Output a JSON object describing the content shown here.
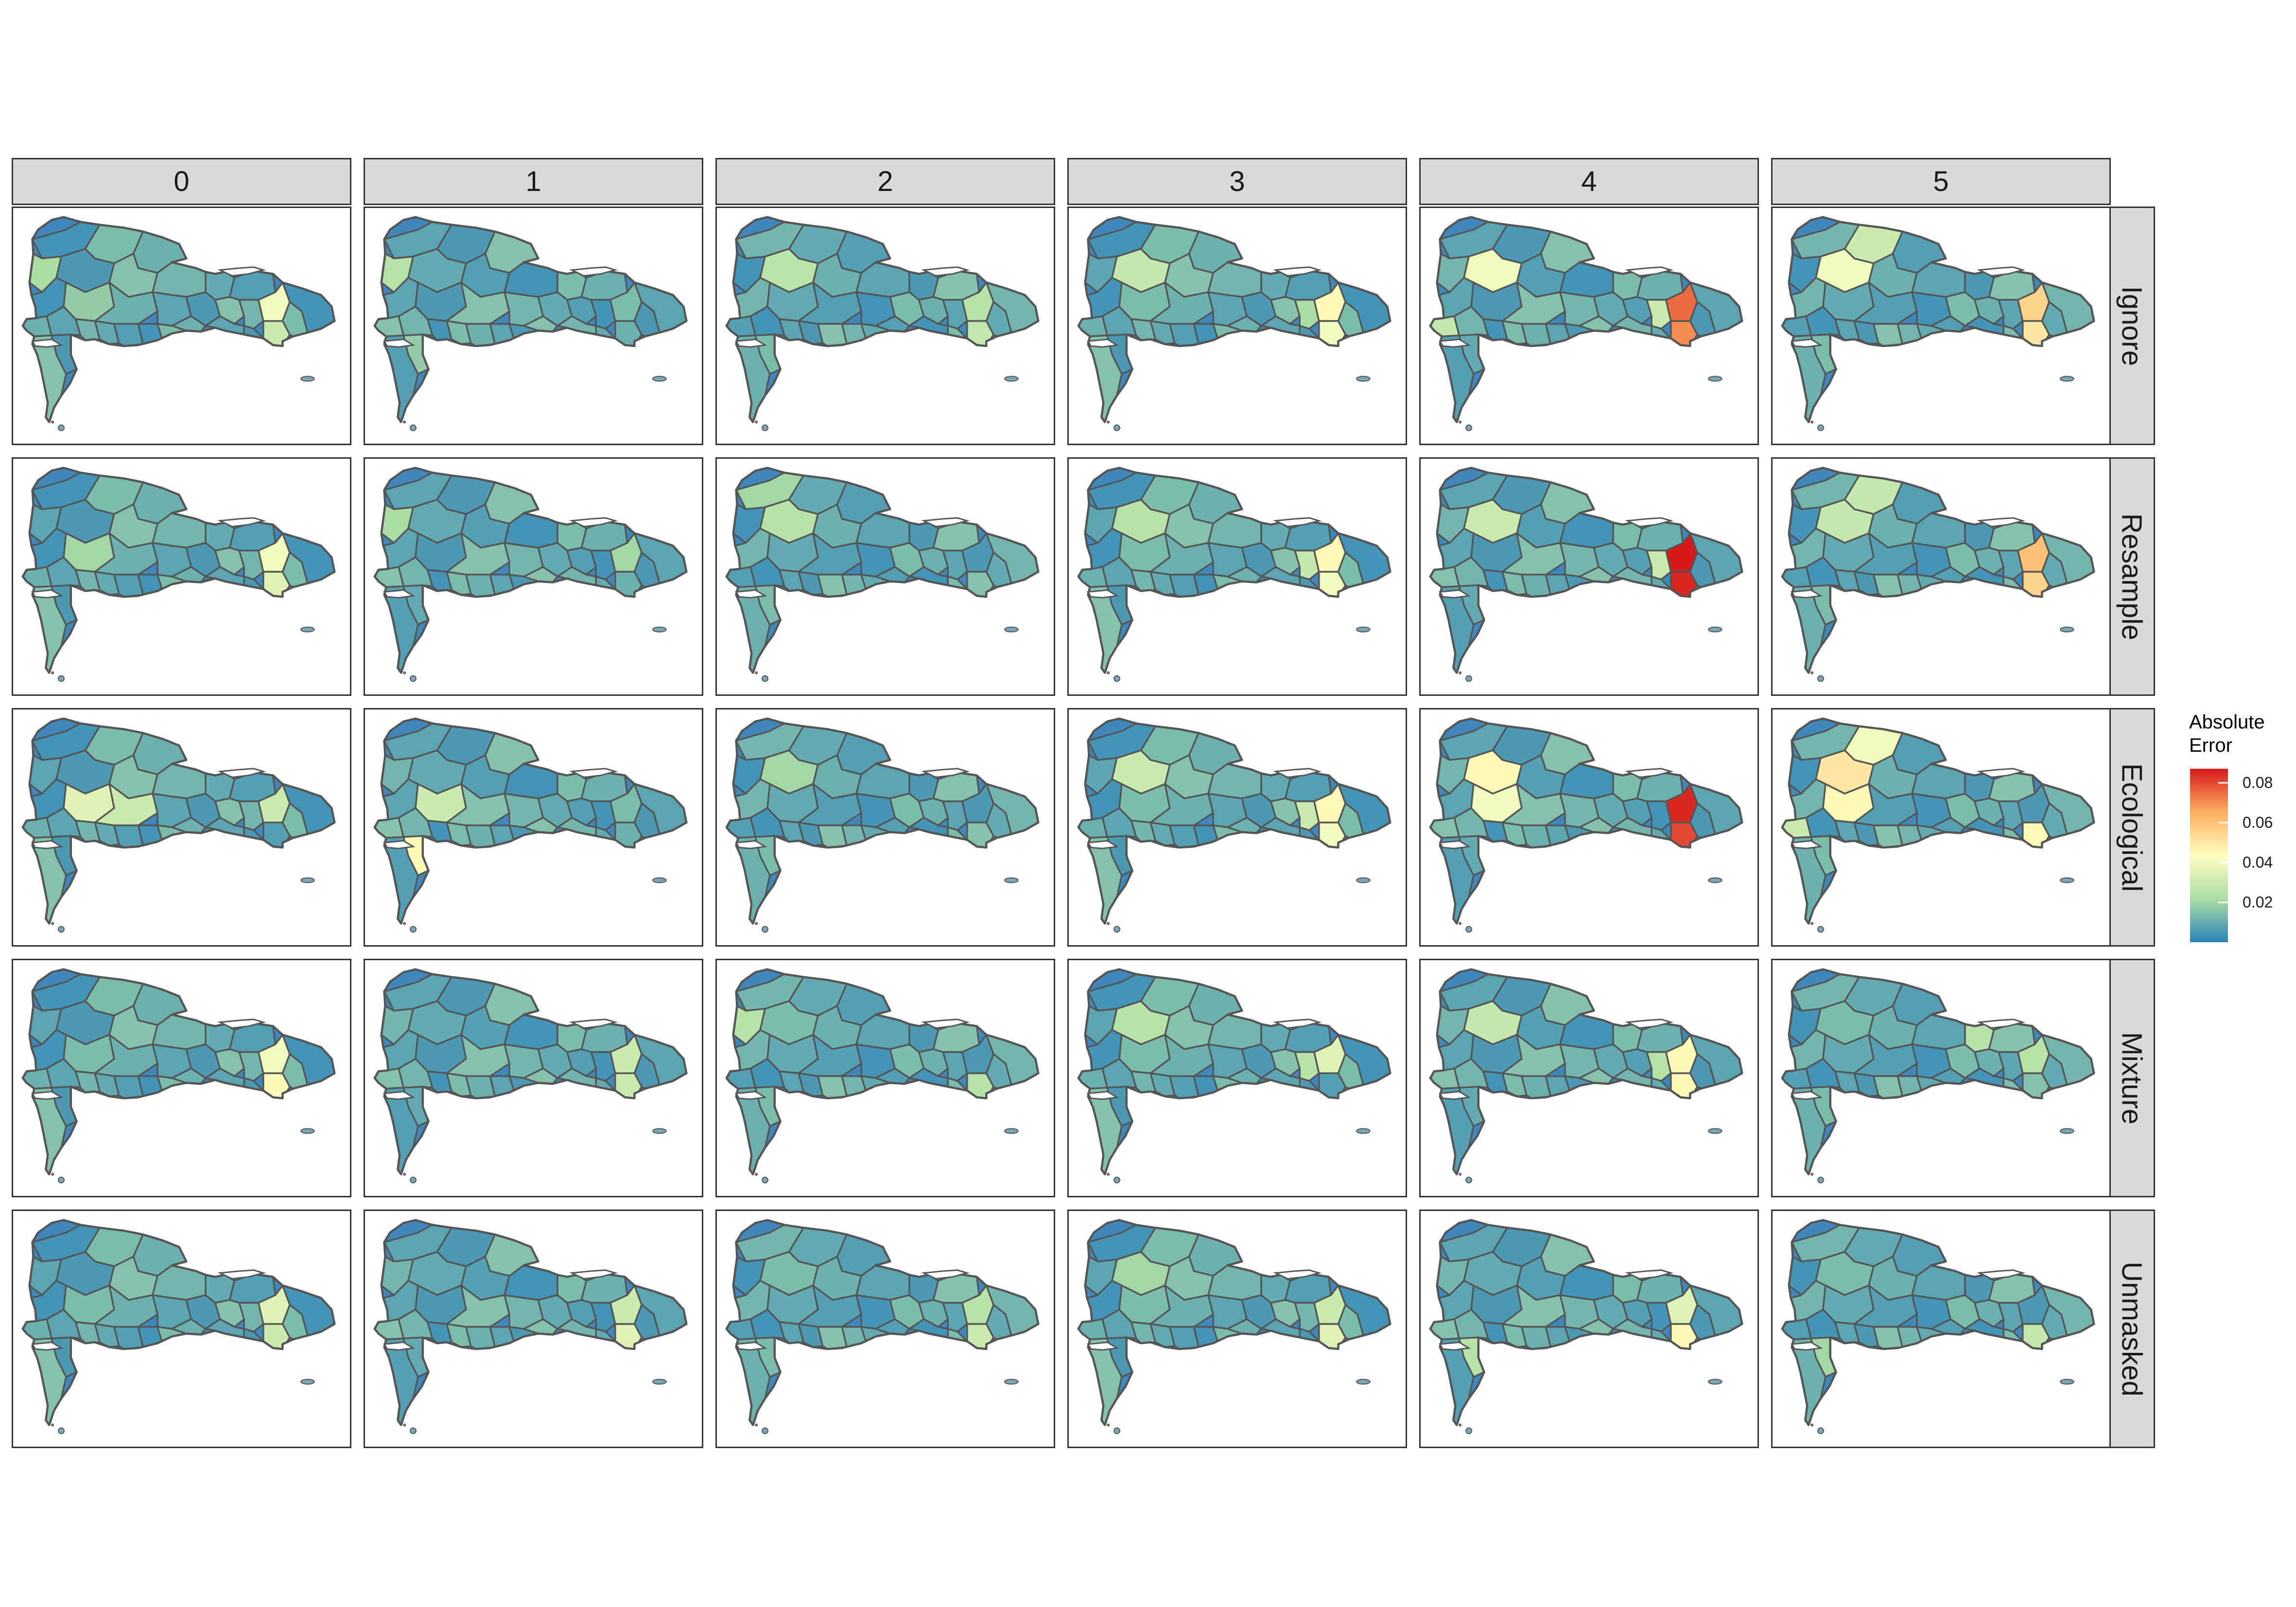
{
  "facets": {
    "columns": [
      "0",
      "1",
      "2",
      "3",
      "4",
      "5"
    ],
    "rows": [
      "Ignore",
      "Resample",
      "Ecological",
      "Mixture",
      "Unmasked"
    ]
  },
  "legend": {
    "title_line1": "Absolute",
    "title_line2": "Error",
    "ticks": [
      "0.08",
      "0.06",
      "0.04",
      "0.02"
    ],
    "tick_values": [
      0.08,
      0.06,
      0.04,
      0.02
    ],
    "range": [
      0.0,
      0.087
    ],
    "palette": [
      "#2b83ba",
      "#abdda4",
      "#ffffbf",
      "#fdae61",
      "#d7191c"
    ]
  },
  "map": {
    "region_count": 32,
    "default_fill": "#3f88bd",
    "border_color": "#555555",
    "panels": [
      {
        "row": 0,
        "col": 0,
        "highlights": [
          [
            16,
            0.04
          ],
          [
            17,
            0.03
          ],
          [
            3,
            0.022
          ],
          [
            10,
            0.018
          ]
        ]
      },
      {
        "row": 0,
        "col": 1,
        "highlights": [
          [
            3,
            0.025
          ],
          [
            22,
            0.018
          ]
        ]
      },
      {
        "row": 0,
        "col": 2,
        "highlights": [
          [
            4,
            0.026
          ],
          [
            17,
            0.028
          ],
          [
            16,
            0.025
          ]
        ]
      },
      {
        "row": 0,
        "col": 3,
        "highlights": [
          [
            4,
            0.028
          ],
          [
            16,
            0.045
          ],
          [
            17,
            0.04
          ],
          [
            15,
            0.022
          ]
        ]
      },
      {
        "row": 0,
        "col": 4,
        "highlights": [
          [
            4,
            0.04
          ],
          [
            16,
            0.075
          ],
          [
            17,
            0.07
          ],
          [
            15,
            0.03
          ],
          [
            20,
            0.028
          ]
        ]
      },
      {
        "row": 0,
        "col": 5,
        "highlights": [
          [
            4,
            0.04
          ],
          [
            16,
            0.055
          ],
          [
            17,
            0.05
          ],
          [
            1,
            0.03
          ]
        ]
      },
      {
        "row": 1,
        "col": 0,
        "highlights": [
          [
            16,
            0.04
          ],
          [
            17,
            0.035
          ],
          [
            10,
            0.02
          ]
        ]
      },
      {
        "row": 1,
        "col": 1,
        "highlights": [
          [
            3,
            0.022
          ],
          [
            16,
            0.02
          ]
        ]
      },
      {
        "row": 1,
        "col": 2,
        "highlights": [
          [
            4,
            0.025
          ],
          [
            0,
            0.02
          ]
        ]
      },
      {
        "row": 1,
        "col": 3,
        "highlights": [
          [
            4,
            0.025
          ],
          [
            16,
            0.045
          ],
          [
            17,
            0.04
          ],
          [
            15,
            0.028
          ]
        ]
      },
      {
        "row": 1,
        "col": 4,
        "highlights": [
          [
            4,
            0.03
          ],
          [
            16,
            0.087
          ],
          [
            17,
            0.085
          ],
          [
            15,
            0.03
          ]
        ]
      },
      {
        "row": 1,
        "col": 5,
        "highlights": [
          [
            4,
            0.028
          ],
          [
            16,
            0.06
          ],
          [
            17,
            0.055
          ],
          [
            1,
            0.028
          ]
        ]
      },
      {
        "row": 2,
        "col": 0,
        "highlights": [
          [
            10,
            0.035
          ],
          [
            11,
            0.03
          ],
          [
            16,
            0.03
          ]
        ]
      },
      {
        "row": 2,
        "col": 1,
        "highlights": [
          [
            10,
            0.03
          ],
          [
            22,
            0.045
          ]
        ]
      },
      {
        "row": 2,
        "col": 2,
        "highlights": [
          [
            4,
            0.02
          ]
        ]
      },
      {
        "row": 2,
        "col": 3,
        "highlights": [
          [
            4,
            0.03
          ],
          [
            16,
            0.045
          ],
          [
            17,
            0.04
          ],
          [
            15,
            0.03
          ]
        ]
      },
      {
        "row": 2,
        "col": 4,
        "highlights": [
          [
            4,
            0.045
          ],
          [
            10,
            0.04
          ],
          [
            16,
            0.085
          ],
          [
            17,
            0.08
          ]
        ]
      },
      {
        "row": 2,
        "col": 5,
        "highlights": [
          [
            4,
            0.05
          ],
          [
            10,
            0.045
          ],
          [
            1,
            0.04
          ],
          [
            17,
            0.045
          ],
          [
            20,
            0.03
          ]
        ]
      },
      {
        "row": 3,
        "col": 0,
        "highlights": [
          [
            16,
            0.04
          ],
          [
            17,
            0.045
          ]
        ]
      },
      {
        "row": 3,
        "col": 1,
        "highlights": [
          [
            16,
            0.03
          ],
          [
            17,
            0.03
          ]
        ]
      },
      {
        "row": 3,
        "col": 2,
        "highlights": [
          [
            3,
            0.025
          ],
          [
            17,
            0.025
          ]
        ]
      },
      {
        "row": 3,
        "col": 3,
        "highlights": [
          [
            4,
            0.025
          ],
          [
            16,
            0.035
          ],
          [
            15,
            0.025
          ]
        ]
      },
      {
        "row": 3,
        "col": 4,
        "highlights": [
          [
            4,
            0.028
          ],
          [
            16,
            0.045
          ],
          [
            17,
            0.045
          ],
          [
            15,
            0.025
          ]
        ]
      },
      {
        "row": 3,
        "col": 5,
        "highlights": [
          [
            7,
            0.025
          ],
          [
            16,
            0.025
          ]
        ]
      },
      {
        "row": 4,
        "col": 0,
        "highlights": [
          [
            16,
            0.035
          ],
          [
            17,
            0.03
          ]
        ]
      },
      {
        "row": 4,
        "col": 1,
        "highlights": [
          [
            16,
            0.03
          ],
          [
            17,
            0.035
          ]
        ]
      },
      {
        "row": 4,
        "col": 2,
        "highlights": [
          [
            17,
            0.03
          ],
          [
            16,
            0.025
          ]
        ]
      },
      {
        "row": 4,
        "col": 3,
        "highlights": [
          [
            4,
            0.02
          ],
          [
            16,
            0.03
          ],
          [
            17,
            0.035
          ]
        ]
      },
      {
        "row": 4,
        "col": 4,
        "highlights": [
          [
            16,
            0.035
          ],
          [
            17,
            0.045
          ],
          [
            22,
            0.025
          ]
        ]
      },
      {
        "row": 4,
        "col": 5,
        "highlights": [
          [
            17,
            0.028
          ],
          [
            22,
            0.02
          ]
        ]
      }
    ]
  }
}
